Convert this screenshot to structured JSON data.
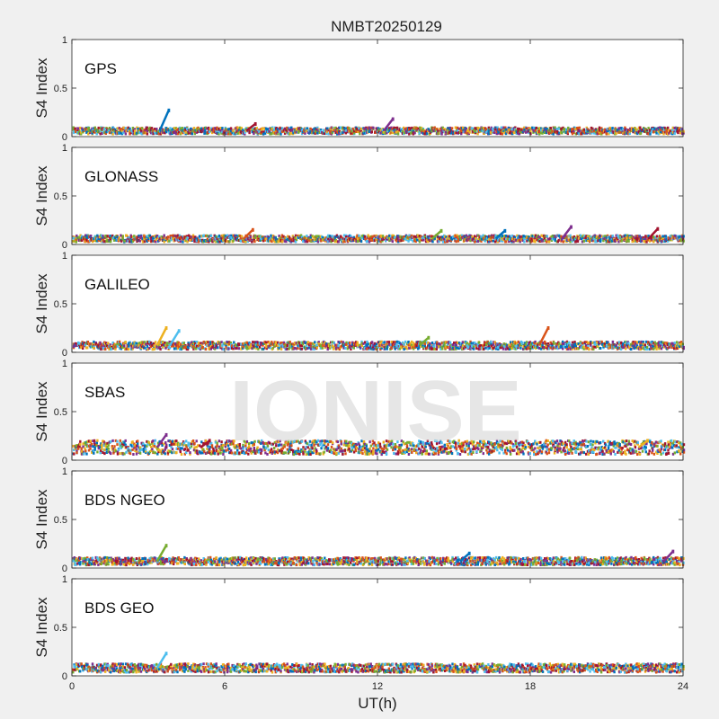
{
  "figure": {
    "title": "NMBT20250129",
    "xlabel": "UT(h)",
    "ylabel": "S4 Index",
    "watermark": "IONISE",
    "background": "#f0f0f0",
    "axes_background": "#ffffff",
    "series_colors": [
      "#0072bd",
      "#d95319",
      "#edb120",
      "#7e2f8e",
      "#77ac30",
      "#4dbeee",
      "#a2142f"
    ]
  },
  "chart_data": [
    {
      "type": "scatter",
      "panel_label": "GPS",
      "ylabel": "S4 Index",
      "xlim": [
        0,
        24
      ],
      "ylim": [
        0,
        1
      ],
      "xticks": [
        0,
        6,
        12,
        18,
        24
      ],
      "yticks": [
        0,
        0.5,
        1
      ],
      "x_tick_labels_shown": false,
      "typical_level": 0.06,
      "spikes": [
        {
          "x": 3.8,
          "y": 0.27
        },
        {
          "x": 12.6,
          "y": 0.18
        },
        {
          "x": 7.2,
          "y": 0.13
        }
      ]
    },
    {
      "type": "scatter",
      "panel_label": "GLONASS",
      "ylabel": "S4 Index",
      "xlim": [
        0,
        24
      ],
      "ylim": [
        0,
        1
      ],
      "xticks": [
        0,
        6,
        12,
        18,
        24
      ],
      "yticks": [
        0,
        0.5,
        1
      ],
      "x_tick_labels_shown": false,
      "typical_level": 0.06,
      "spikes": [
        {
          "x": 7.1,
          "y": 0.15
        },
        {
          "x": 14.5,
          "y": 0.14
        },
        {
          "x": 17.0,
          "y": 0.14
        },
        {
          "x": 19.6,
          "y": 0.18
        },
        {
          "x": 23.0,
          "y": 0.16
        }
      ]
    },
    {
      "type": "scatter",
      "panel_label": "GALILEO",
      "ylabel": "S4 Index",
      "xlim": [
        0,
        24
      ],
      "ylim": [
        0,
        1
      ],
      "xticks": [
        0,
        6,
        12,
        18,
        24
      ],
      "yticks": [
        0,
        0.5,
        1
      ],
      "x_tick_labels_shown": false,
      "typical_level": 0.07,
      "spikes": [
        {
          "x": 3.7,
          "y": 0.25
        },
        {
          "x": 4.2,
          "y": 0.22
        },
        {
          "x": 18.7,
          "y": 0.25
        },
        {
          "x": 14.0,
          "y": 0.15
        }
      ]
    },
    {
      "type": "scatter",
      "panel_label": "SBAS",
      "ylabel": "S4 Index",
      "xlim": [
        0,
        24
      ],
      "ylim": [
        0,
        1
      ],
      "xticks": [
        0,
        6,
        12,
        18,
        24
      ],
      "yticks": [
        0,
        0.5,
        1
      ],
      "x_tick_labels_shown": false,
      "typical_level": 0.13,
      "spikes": [
        {
          "x": 3.7,
          "y": 0.26
        },
        {
          "x": 5.4,
          "y": 0.2
        },
        {
          "x": 22.6,
          "y": 0.2
        }
      ]
    },
    {
      "type": "scatter",
      "panel_label": "BDS NGEO",
      "ylabel": "S4 Index",
      "xlim": [
        0,
        24
      ],
      "ylim": [
        0,
        1
      ],
      "xticks": [
        0,
        6,
        12,
        18,
        24
      ],
      "yticks": [
        0,
        0.5,
        1
      ],
      "x_tick_labels_shown": false,
      "typical_level": 0.07,
      "spikes": [
        {
          "x": 3.7,
          "y": 0.23
        },
        {
          "x": 15.6,
          "y": 0.15
        },
        {
          "x": 23.6,
          "y": 0.17
        }
      ]
    },
    {
      "type": "scatter",
      "panel_label": "BDS GEO",
      "ylabel": "S4 Index",
      "xlim": [
        0,
        24
      ],
      "ylim": [
        0,
        1
      ],
      "xticks": [
        0,
        6,
        12,
        18,
        24
      ],
      "yticks": [
        0,
        0.5,
        1
      ],
      "x_tick_labels_shown": true,
      "xlabel": "UT(h)",
      "typical_level": 0.08,
      "spikes": [
        {
          "x": 3.7,
          "y": 0.23
        }
      ]
    }
  ]
}
